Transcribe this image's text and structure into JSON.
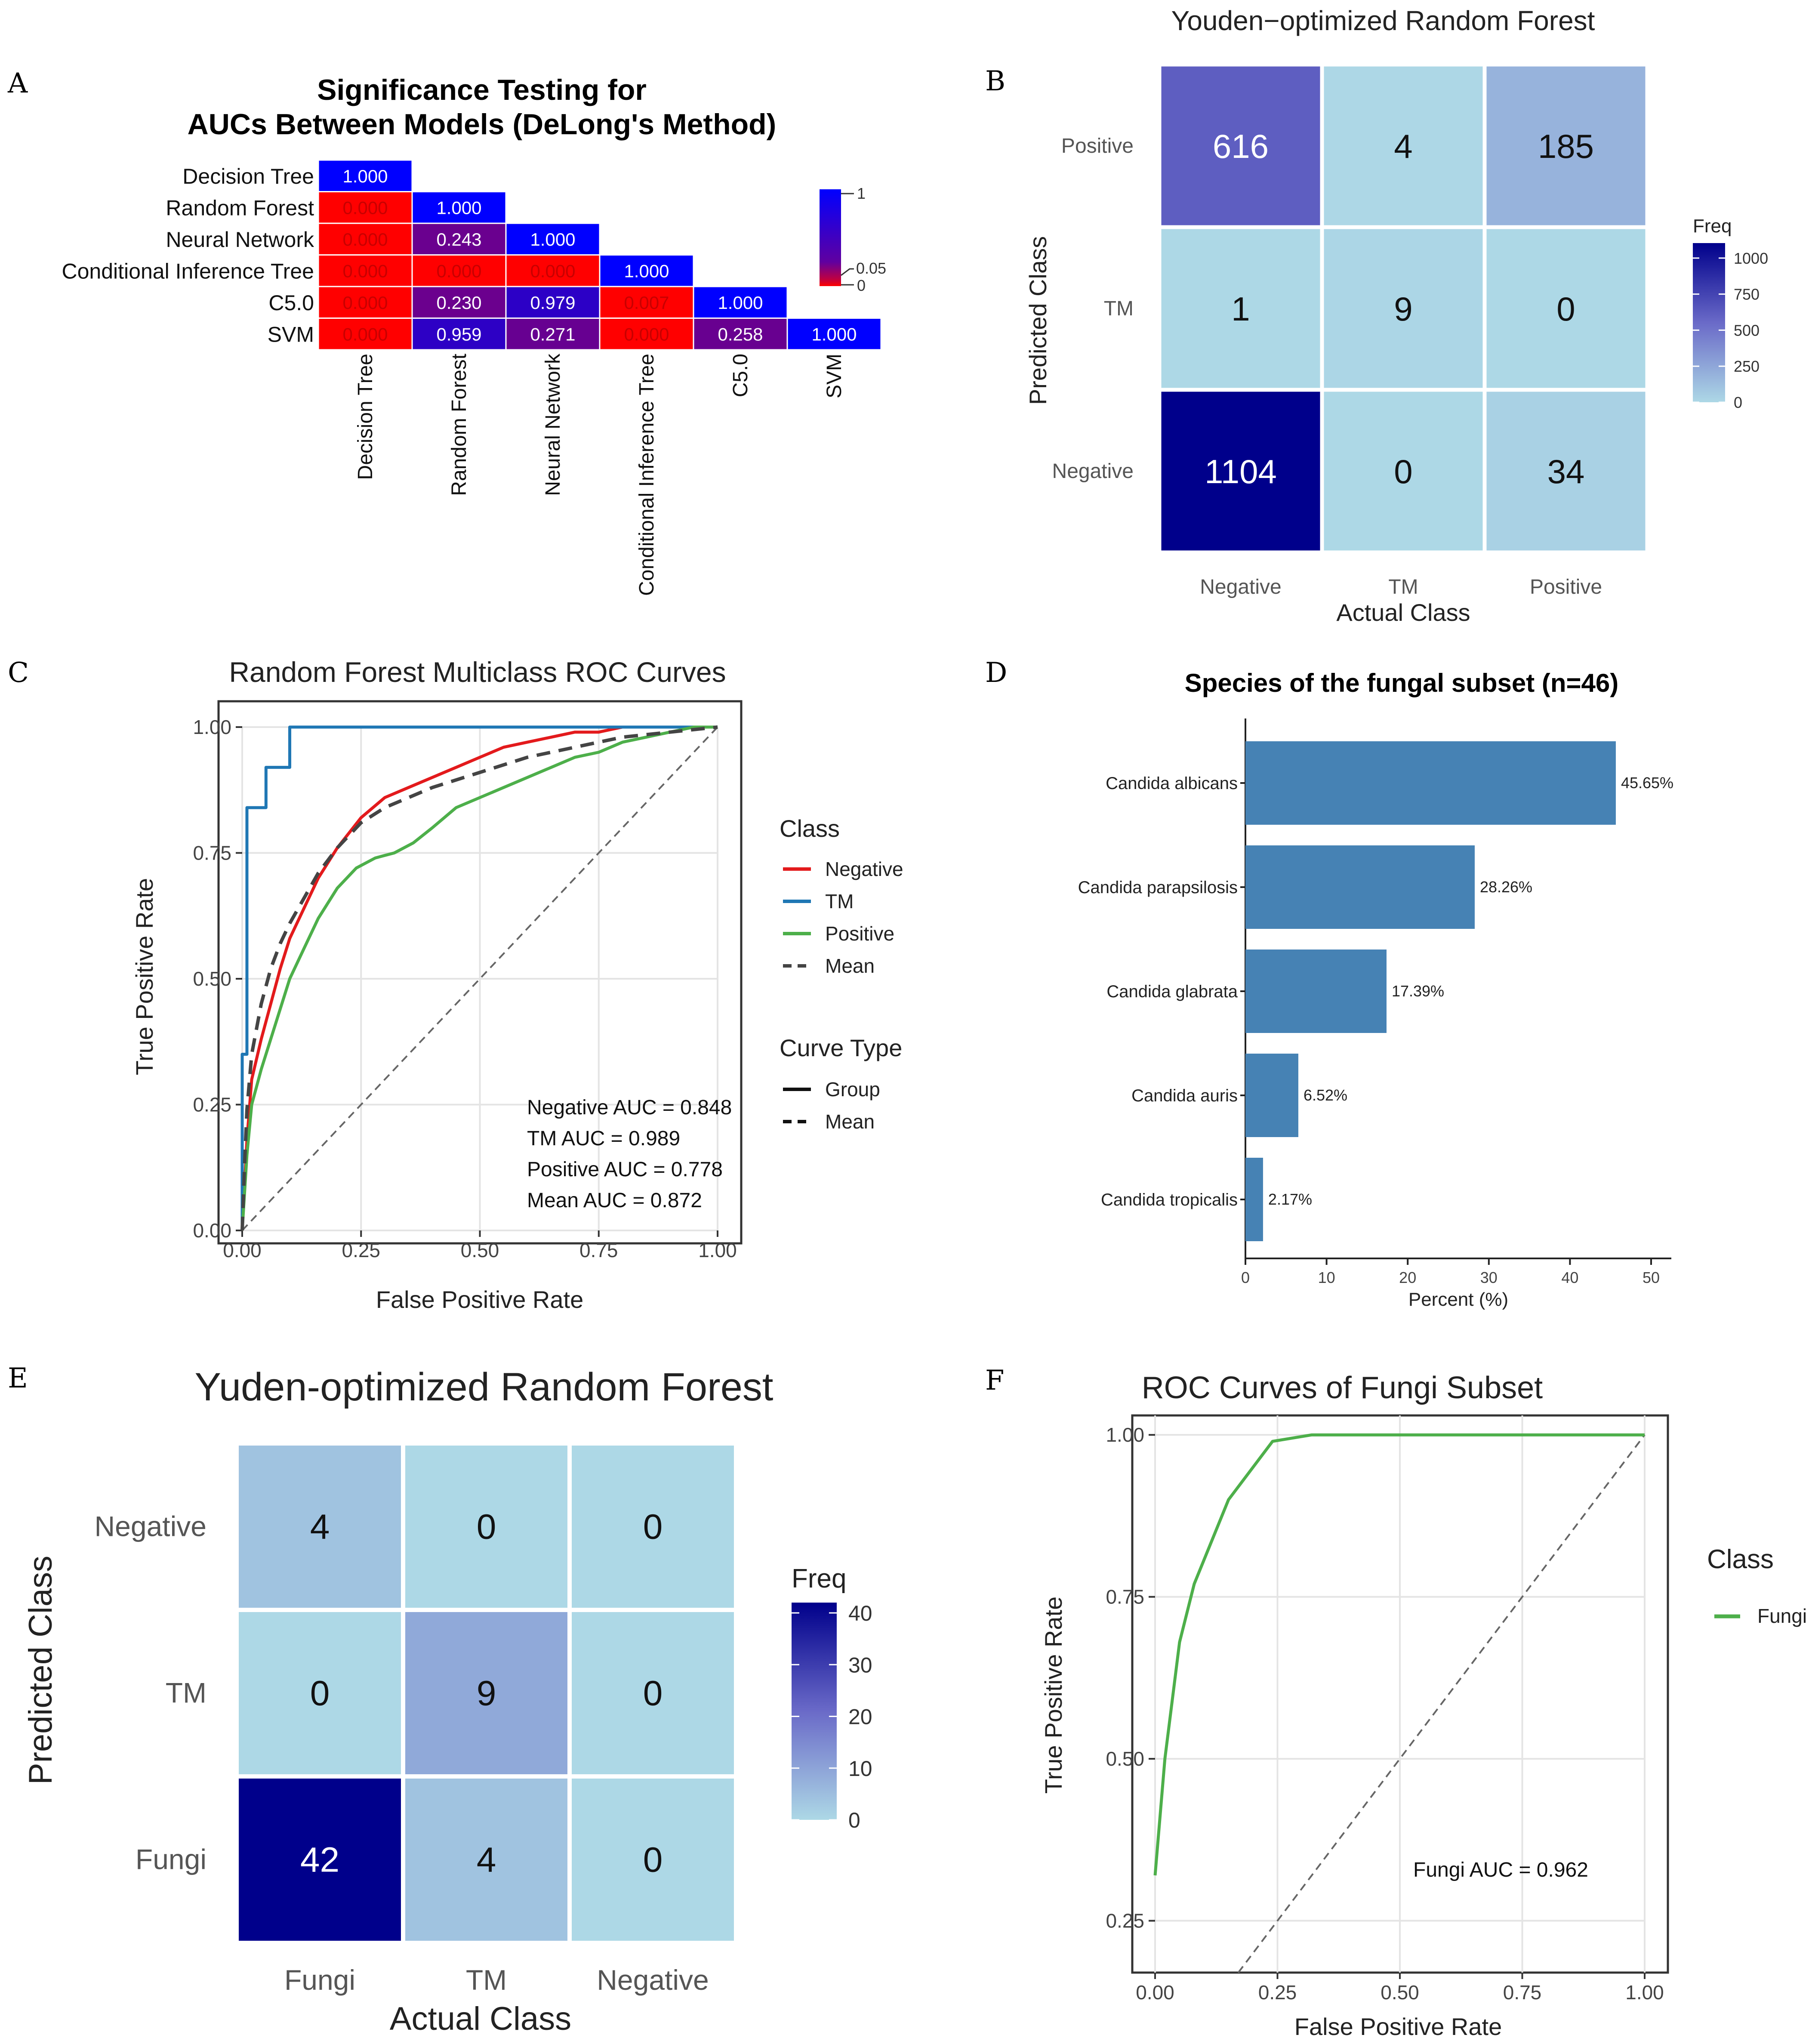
{
  "panel_letters": [
    "A",
    "B",
    "C",
    "D",
    "E",
    "F"
  ],
  "colors": {
    "red": "#ff0000",
    "blue": "#0000ff",
    "navy": "#00008b",
    "lightblue": "#add8e6",
    "roc_red": "#e31a1c",
    "roc_blue": "#1f77b4",
    "roc_green": "#4daf4a",
    "roc_mean": "#444444",
    "bar": "#4682b4",
    "grid": "#e6e6e6"
  },
  "chart_data": [
    {
      "type": "heatmap",
      "panel": "A",
      "title_line1": "Significance Testing for",
      "title_line2": "AUCs Between Models (DeLong's Method)",
      "labels": [
        "Decision Tree",
        "Random Forest",
        "Neural Network",
        "Conditional Inference Tree",
        "C5.0",
        "SVM"
      ],
      "cells": [
        [
          0,
          0,
          "1.000"
        ],
        [
          1,
          0,
          "0.000"
        ],
        [
          1,
          1,
          "1.000"
        ],
        [
          2,
          0,
          "0.000"
        ],
        [
          2,
          1,
          "0.243"
        ],
        [
          2,
          2,
          "1.000"
        ],
        [
          3,
          0,
          "0.000"
        ],
        [
          3,
          1,
          "0.000"
        ],
        [
          3,
          2,
          "0.000"
        ],
        [
          3,
          3,
          "1.000"
        ],
        [
          4,
          0,
          "0.000"
        ],
        [
          4,
          1,
          "0.230"
        ],
        [
          4,
          2,
          "0.979"
        ],
        [
          4,
          3,
          "0.007"
        ],
        [
          4,
          4,
          "1.000"
        ],
        [
          5,
          0,
          "0.000"
        ],
        [
          5,
          1,
          "0.959"
        ],
        [
          5,
          2,
          "0.271"
        ],
        [
          5,
          3,
          "0.000"
        ],
        [
          5,
          4,
          "0.258"
        ],
        [
          5,
          5,
          "1.000"
        ]
      ],
      "legend": {
        "ticks": [
          "1",
          "0.05",
          "0"
        ]
      }
    },
    {
      "type": "heatmap",
      "panel": "B",
      "title": "Youden−optimized Random Forest",
      "ylabel": "Predicted Class",
      "xlabel": "Actual Class",
      "rows": [
        "Positive",
        "TM",
        "Negative"
      ],
      "cols": [
        "Negative",
        "TM",
        "Positive"
      ],
      "values": [
        [
          616,
          4,
          185
        ],
        [
          1,
          9,
          0
        ],
        [
          1104,
          0,
          34
        ]
      ],
      "legend": {
        "title": "Freq",
        "ticks": [
          "1000",
          "750",
          "500",
          "250",
          "0"
        ],
        "max": 1104
      }
    },
    {
      "type": "line",
      "panel": "C",
      "title": "Random Forest Multiclass ROC Curves",
      "xlabel": "False Positive Rate",
      "ylabel": "True Positive Rate",
      "ticks": [
        "0.00",
        "0.25",
        "0.50",
        "0.75",
        "1.00"
      ],
      "series": [
        {
          "name": "Negative",
          "color": "#e31a1c",
          "dash": false,
          "x": [
            0,
            0.01,
            0.02,
            0.04,
            0.06,
            0.08,
            0.1,
            0.13,
            0.16,
            0.2,
            0.25,
            0.3,
            0.35,
            0.4,
            0.45,
            0.5,
            0.55,
            0.6,
            0.65,
            0.7,
            0.75,
            0.8,
            0.9,
            1.0
          ],
          "y": [
            0,
            0.18,
            0.3,
            0.38,
            0.45,
            0.52,
            0.58,
            0.64,
            0.7,
            0.76,
            0.82,
            0.86,
            0.88,
            0.9,
            0.92,
            0.94,
            0.96,
            0.97,
            0.98,
            0.99,
            0.99,
            1.0,
            1.0,
            1.0
          ]
        },
        {
          "name": "TM",
          "color": "#1f77b4",
          "dash": false,
          "x": [
            0,
            0,
            0.01,
            0.01,
            0.05,
            0.05,
            0.09,
            0.1,
            0.1,
            1.0
          ],
          "y": [
            0,
            0.35,
            0.35,
            0.84,
            0.84,
            0.92,
            0.92,
            0.92,
            1.0,
            1.0
          ]
        },
        {
          "name": "Positive",
          "color": "#4daf4a",
          "dash": false,
          "x": [
            0,
            0.01,
            0.02,
            0.04,
            0.06,
            0.08,
            0.1,
            0.13,
            0.16,
            0.2,
            0.24,
            0.28,
            0.32,
            0.36,
            0.4,
            0.45,
            0.5,
            0.55,
            0.6,
            0.65,
            0.7,
            0.75,
            0.8,
            0.85,
            0.9,
            0.95,
            1.0
          ],
          "y": [
            0,
            0.15,
            0.25,
            0.32,
            0.38,
            0.44,
            0.5,
            0.56,
            0.62,
            0.68,
            0.72,
            0.74,
            0.75,
            0.77,
            0.8,
            0.84,
            0.86,
            0.88,
            0.9,
            0.92,
            0.94,
            0.95,
            0.97,
            0.98,
            0.99,
            1.0,
            1.0
          ]
        },
        {
          "name": "Mean",
          "color": "#444444",
          "dash": true,
          "x": [
            0,
            0.005,
            0.01,
            0.02,
            0.04,
            0.06,
            0.08,
            0.1,
            0.13,
            0.16,
            0.2,
            0.25,
            0.3,
            0.35,
            0.4,
            0.5,
            0.6,
            0.7,
            0.8,
            0.9,
            1.0
          ],
          "y": [
            0,
            0.13,
            0.24,
            0.35,
            0.45,
            0.52,
            0.57,
            0.61,
            0.66,
            0.71,
            0.76,
            0.81,
            0.84,
            0.86,
            0.88,
            0.91,
            0.94,
            0.96,
            0.98,
            0.99,
            1.0
          ]
        }
      ],
      "legend_class_title": "Class",
      "legend_class_items": [
        "Negative",
        "TM",
        "Positive",
        "Mean"
      ],
      "legend_curve_title": "Curve Type",
      "legend_curve_items": [
        "Group",
        "Mean"
      ],
      "annotations": [
        "Negative AUC = 0.848",
        "TM AUC = 0.989",
        "Positive AUC = 0.778",
        "Mean AUC = 0.872"
      ]
    },
    {
      "type": "bar",
      "panel": "D",
      "title": "Species of the fungal subset (n=46)",
      "xlabel": "Percent (%)",
      "categories": [
        "Candida albicans",
        "Candida parapsilosis",
        "Candida glabrata",
        "Candida auris",
        "Candida tropicalis"
      ],
      "values": [
        45.65,
        28.26,
        17.39,
        6.52,
        2.17
      ],
      "value_labels": [
        "45.65%",
        "28.26%",
        "17.39%",
        "6.52%",
        "2.17%"
      ],
      "xlim": [
        0,
        50
      ],
      "ticks": [
        "0",
        "10",
        "20",
        "30",
        "40",
        "50"
      ]
    },
    {
      "type": "heatmap",
      "panel": "E",
      "title": "Yuden-optimized Random Forest",
      "ylabel": "Predicted Class",
      "xlabel": "Actual Class",
      "rows": [
        "Negative",
        "TM",
        "Fungi"
      ],
      "cols": [
        "Fungi",
        "TM",
        "Negative"
      ],
      "values": [
        [
          4,
          0,
          0
        ],
        [
          0,
          9,
          0
        ],
        [
          42,
          4,
          0
        ]
      ],
      "legend": {
        "title": "Freq",
        "ticks": [
          "40",
          "30",
          "20",
          "10",
          "0"
        ],
        "max": 42
      }
    },
    {
      "type": "line",
      "panel": "F",
      "title": "ROC Curves of Fungi Subset",
      "xlabel": "False Positive Rate",
      "ylabel": "True Positive Rate",
      "xticks": [
        "0.00",
        "0.25",
        "0.50",
        "0.75",
        "1.00"
      ],
      "yticks": [
        "1.00",
        "0.75",
        "0.50",
        "0.25"
      ],
      "ylim": [
        0.17,
        1.03
      ],
      "series": [
        {
          "name": "Fungi",
          "color": "#4daf4a",
          "x": [
            0,
            0.02,
            0.05,
            0.08,
            0.15,
            0.24,
            0.32,
            1.0
          ],
          "y": [
            0.32,
            0.5,
            0.68,
            0.77,
            0.9,
            0.99,
            1.0,
            1.0
          ]
        }
      ],
      "legend_title": "Class",
      "legend_items": [
        "Fungi"
      ],
      "annotation": "Fungi AUC = 0.962"
    }
  ]
}
